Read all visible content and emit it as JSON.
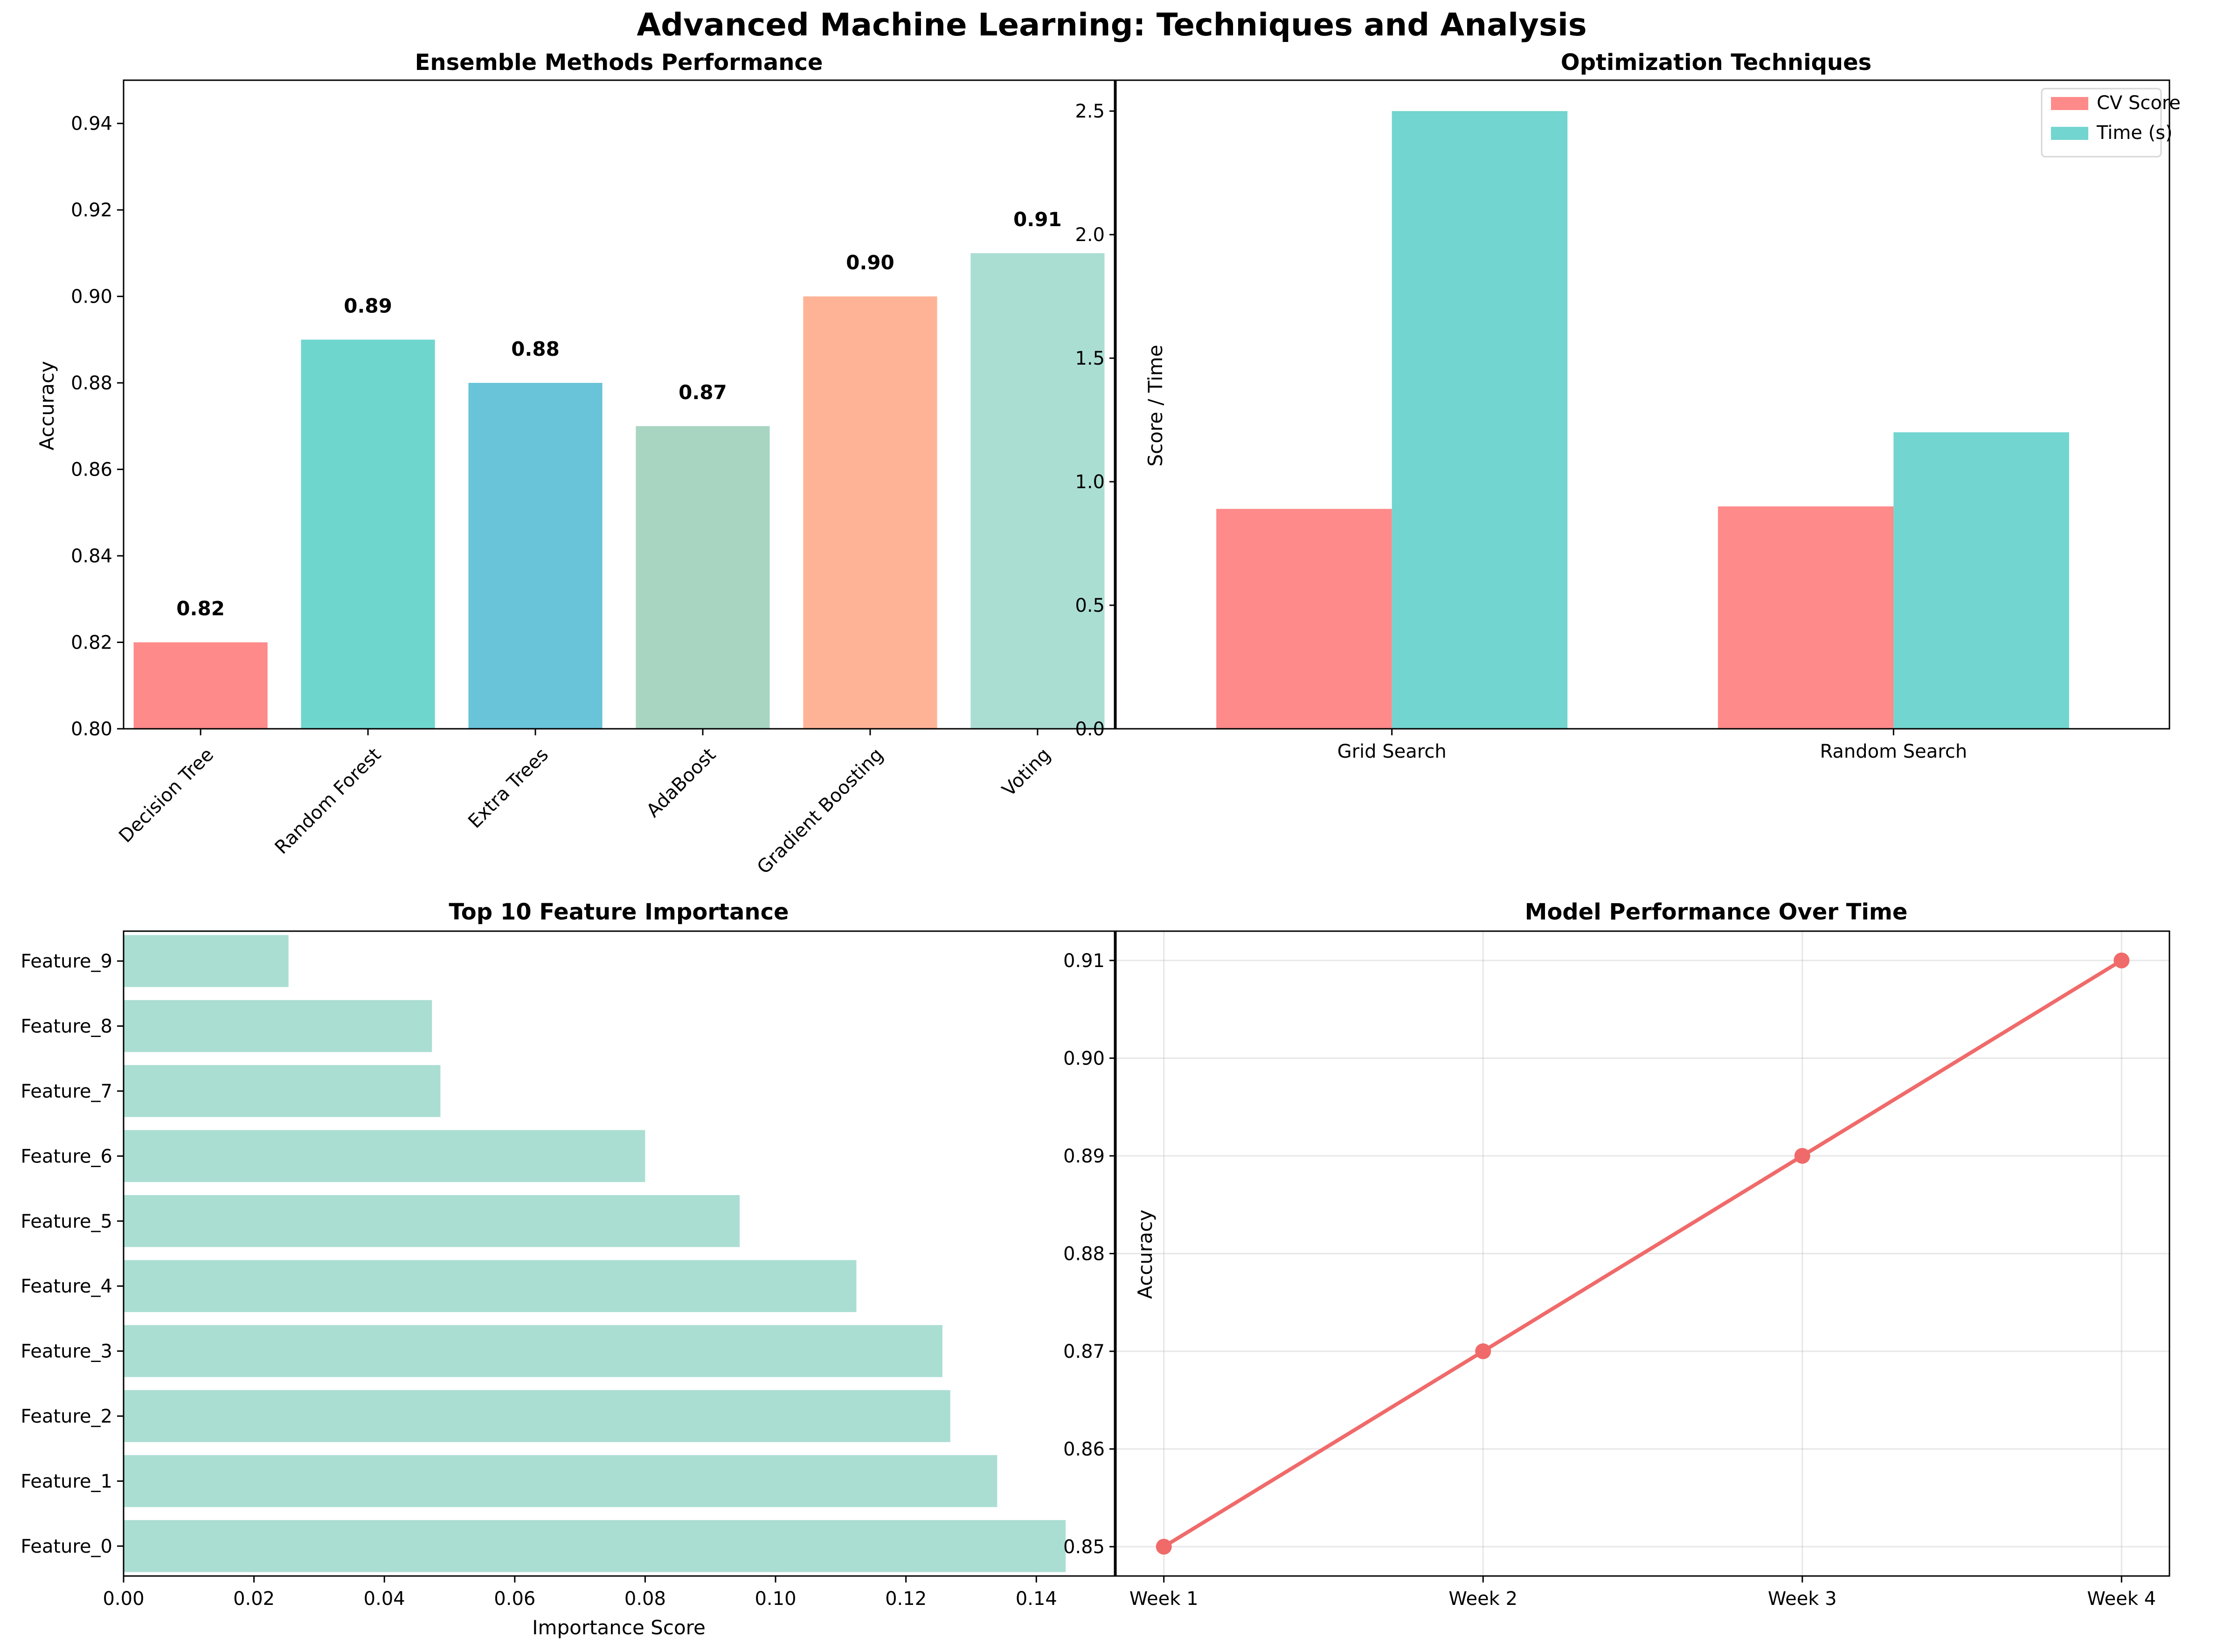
{
  "figure": {
    "title": "Advanced Machine Learning: Techniques and Analysis"
  },
  "chart_data": [
    {
      "type": "bar",
      "title": "Ensemble Methods Performance",
      "xlabel": "",
      "ylabel": "Accuracy",
      "categories": [
        "Decision Tree",
        "Random Forest",
        "Extra Trees",
        "AdaBoost",
        "Gradient Boosting",
        "Voting"
      ],
      "values": [
        0.82,
        0.89,
        0.88,
        0.87,
        0.9,
        0.91
      ],
      "data_labels": [
        "0.82",
        "0.89",
        "0.88",
        "0.87",
        "0.90",
        "0.91"
      ],
      "colors": [
        "#FF8A8A",
        "#6FD6CE",
        "#69C3D9",
        "#A8D5C2",
        "#FFB396",
        "#ABDED3"
      ],
      "ylim": [
        0.8,
        0.95
      ],
      "yticks": [
        0.8,
        0.82,
        0.84,
        0.86,
        0.88,
        0.9,
        0.92,
        0.94
      ],
      "ytick_labels": [
        "0.80",
        "0.82",
        "0.84",
        "0.86",
        "0.88",
        "0.90",
        "0.92",
        "0.94"
      ],
      "grid": false
    },
    {
      "type": "bar",
      "title": "Optimization Techniques",
      "xlabel": "",
      "ylabel": "Score / Time",
      "categories": [
        "Grid Search",
        "Random Search"
      ],
      "series": [
        {
          "name": "CV Score",
          "values": [
            0.89,
            0.9
          ],
          "color": "#FF8A8A"
        },
        {
          "name": "Time (s)",
          "values": [
            2.5,
            1.2
          ],
          "color": "#73D5CF"
        }
      ],
      "ylim": [
        0,
        2.625
      ],
      "yticks": [
        0.0,
        0.5,
        1.0,
        1.5,
        2.0,
        2.5
      ],
      "ytick_labels": [
        "0.0",
        "0.5",
        "1.0",
        "1.5",
        "2.0",
        "2.5"
      ],
      "legend": "top-right",
      "grid": false
    },
    {
      "type": "bar",
      "orientation": "horizontal",
      "title": "Top 10 Feature Importance",
      "xlabel": "Importance Score",
      "ylabel": "",
      "categories": [
        "Feature_0",
        "Feature_1",
        "Feature_2",
        "Feature_3",
        "Feature_4",
        "Feature_5",
        "Feature_6",
        "Feature_7",
        "Feature_8",
        "Feature_9"
      ],
      "values": [
        0.1445,
        0.134,
        0.1268,
        0.1256,
        0.1124,
        0.0945,
        0.08,
        0.0486,
        0.0473,
        0.0253
      ],
      "color": "#ABDED3",
      "xlim": [
        0,
        0.152
      ],
      "xticks": [
        0.0,
        0.02,
        0.04,
        0.06,
        0.08,
        0.1,
        0.12,
        0.14
      ],
      "xtick_labels": [
        "0.00",
        "0.02",
        "0.04",
        "0.06",
        "0.08",
        "0.10",
        "0.12",
        "0.14"
      ],
      "grid": false
    },
    {
      "type": "line",
      "title": "Model Performance Over Time",
      "xlabel": "",
      "ylabel": "Accuracy",
      "x": [
        "Week 1",
        "Week 2",
        "Week 3",
        "Week 4"
      ],
      "values": [
        0.85,
        0.87,
        0.89,
        0.91
      ],
      "color": "#F06A6A",
      "ylim": [
        0.847,
        0.913
      ],
      "yticks": [
        0.85,
        0.86,
        0.87,
        0.88,
        0.89,
        0.9,
        0.91
      ],
      "ytick_labels": [
        "0.85",
        "0.86",
        "0.87",
        "0.88",
        "0.89",
        "0.90",
        "0.91"
      ],
      "grid": true
    }
  ]
}
